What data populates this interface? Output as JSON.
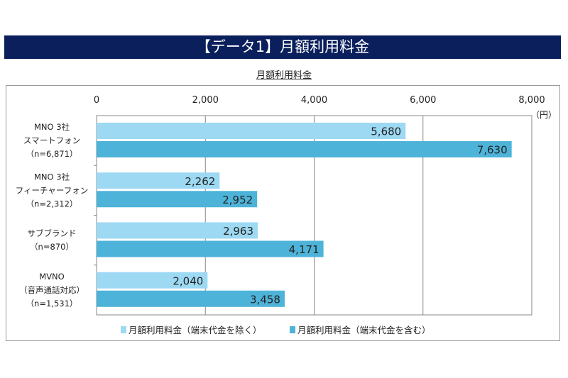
{
  "header": {
    "title": "【データ1】月額利用料金"
  },
  "chart_data": {
    "type": "bar",
    "orientation": "horizontal",
    "title": "月額利用料金",
    "unit_label": "（円）",
    "xlim": [
      0,
      8000
    ],
    "ticks": [
      0,
      2000,
      4000,
      6000,
      8000
    ],
    "tick_labels": [
      "0",
      "2,000",
      "4,000",
      "6,000",
      "8,000"
    ],
    "grid": true,
    "legend_position": "bottom",
    "categories": [
      [
        "MNO 3社",
        "スマートフォン",
        "（n=6,871）"
      ],
      [
        "MNO 3社",
        "フィーチャーフォン",
        "（n=2,312）"
      ],
      [
        "サブブランド",
        "（n=870）"
      ],
      [
        "MVNO",
        "（音声通話対応）",
        "（n=1,531）"
      ]
    ],
    "series": [
      {
        "name": "月額利用料金（端末代金を除く）",
        "color": "#9dd9f3",
        "values": [
          5680,
          2262,
          2963,
          2040
        ],
        "labels": [
          "5,680",
          "2,262",
          "2,963",
          "2,040"
        ]
      },
      {
        "name": "月額利用料金（端末代金を含む）",
        "color": "#4eb3d8",
        "values": [
          7630,
          2952,
          4171,
          3458
        ],
        "labels": [
          "7,630",
          "2,952",
          "4,171",
          "3,458"
        ]
      }
    ]
  }
}
